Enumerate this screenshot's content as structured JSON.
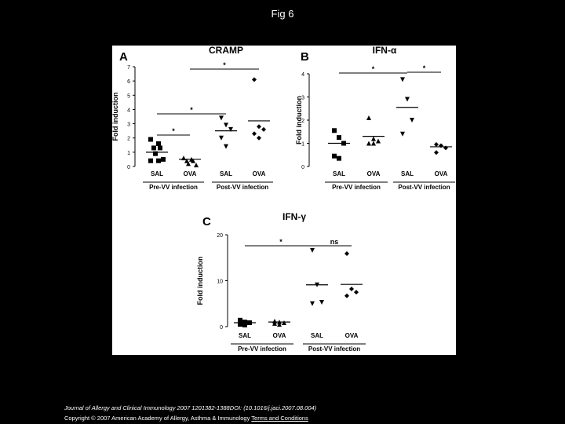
{
  "title": "Fig 6",
  "chart_data": [
    {
      "type": "strip",
      "panel": "A",
      "title": "CRAMP",
      "ylabel": "Fold induction",
      "categories": [
        "SAL",
        "OVA",
        "SAL",
        "OVA"
      ],
      "groups": [
        "Pre-VV infection",
        "Post-VV infection"
      ],
      "markers": [
        "square",
        "triangle-up",
        "triangle-down",
        "diamond"
      ],
      "color": "#000000",
      "ylim": [
        0,
        7
      ],
      "yticks": [
        0,
        1,
        2,
        3,
        4,
        5,
        6,
        7
      ],
      "points": [
        [
          1.9,
          1.6,
          1.3,
          1.3,
          0.9,
          0.5,
          0.4,
          0.4
        ],
        [
          0.6,
          0.5,
          0.4,
          0.4,
          0.2,
          0.1
        ],
        [
          3.4,
          2.9,
          2.6,
          2.0,
          1.4
        ],
        [
          6.1,
          2.8,
          2.6,
          2.3,
          2.0
        ]
      ],
      "means": [
        1.0,
        0.5,
        2.5,
        3.2
      ],
      "annotations": [
        {
          "text": "*",
          "between": [
            0,
            1
          ]
        },
        {
          "text": "*",
          "between": [
            0,
            2
          ]
        },
        {
          "text": "*",
          "between": [
            1,
            3
          ]
        }
      ]
    },
    {
      "type": "strip",
      "panel": "B",
      "title": "IFN-α",
      "ylabel": "Fold induction",
      "categories": [
        "SAL",
        "OVA",
        "SAL",
        "OVA"
      ],
      "groups": [
        "Pre-VV infection",
        "Post-VV infection"
      ],
      "markers": [
        "square",
        "triangle-up",
        "triangle-down",
        "diamond"
      ],
      "color": "#000000",
      "ylim": [
        0,
        4
      ],
      "yticks": [
        0,
        1,
        2,
        3,
        4
      ],
      "points": [
        [
          1.55,
          1.25,
          1.0,
          0.45,
          0.35
        ],
        [
          2.1,
          1.2,
          1.1,
          1.0,
          1.0
        ],
        [
          3.75,
          2.9,
          2.0,
          1.4
        ],
        [
          0.95,
          0.9,
          0.8,
          0.6
        ]
      ],
      "means": [
        1.0,
        1.3,
        2.55,
        0.85
      ],
      "annotations": [
        {
          "text": "*",
          "between": [
            0,
            2
          ]
        },
        {
          "text": "*",
          "between": [
            2,
            3
          ]
        }
      ]
    },
    {
      "type": "strip",
      "panel": "C",
      "title": "IFN-γ",
      "ylabel": "Fold induction",
      "categories": [
        "SAL",
        "OVA",
        "SAL",
        "OVA"
      ],
      "groups": [
        "Pre-VV infection",
        "Post-VV infection"
      ],
      "markers": [
        "square",
        "triangle-up",
        "triangle-down",
        "diamond"
      ],
      "color": "#000000",
      "ylim": [
        0,
        20
      ],
      "yticks": [
        0,
        10,
        20
      ],
      "points": [
        [
          1.4,
          1.0,
          0.85,
          0.5,
          0.35
        ],
        [
          1.2,
          1.0,
          0.85,
          0.7,
          0.5
        ],
        [
          16.6,
          9.1,
          5.3,
          5.0
        ],
        [
          15.9,
          8.2,
          7.5,
          6.7
        ]
      ],
      "means": [
        0.85,
        1.0,
        9.1,
        9.2
      ],
      "annotations": [
        {
          "text": "*",
          "between": [
            0,
            2
          ]
        },
        {
          "text": "ns",
          "between": [
            2,
            3
          ]
        }
      ]
    }
  ],
  "footer": {
    "citation": "Journal of Allergy and Clinical Immunology 2007 1201382-1388DOI: (10.1016/j.jaci.2007.08.004)",
    "copyright": "Copyright © 2007 American Academy of Allergy, Asthma & Immunology",
    "link": "Terms and Conditions"
  }
}
